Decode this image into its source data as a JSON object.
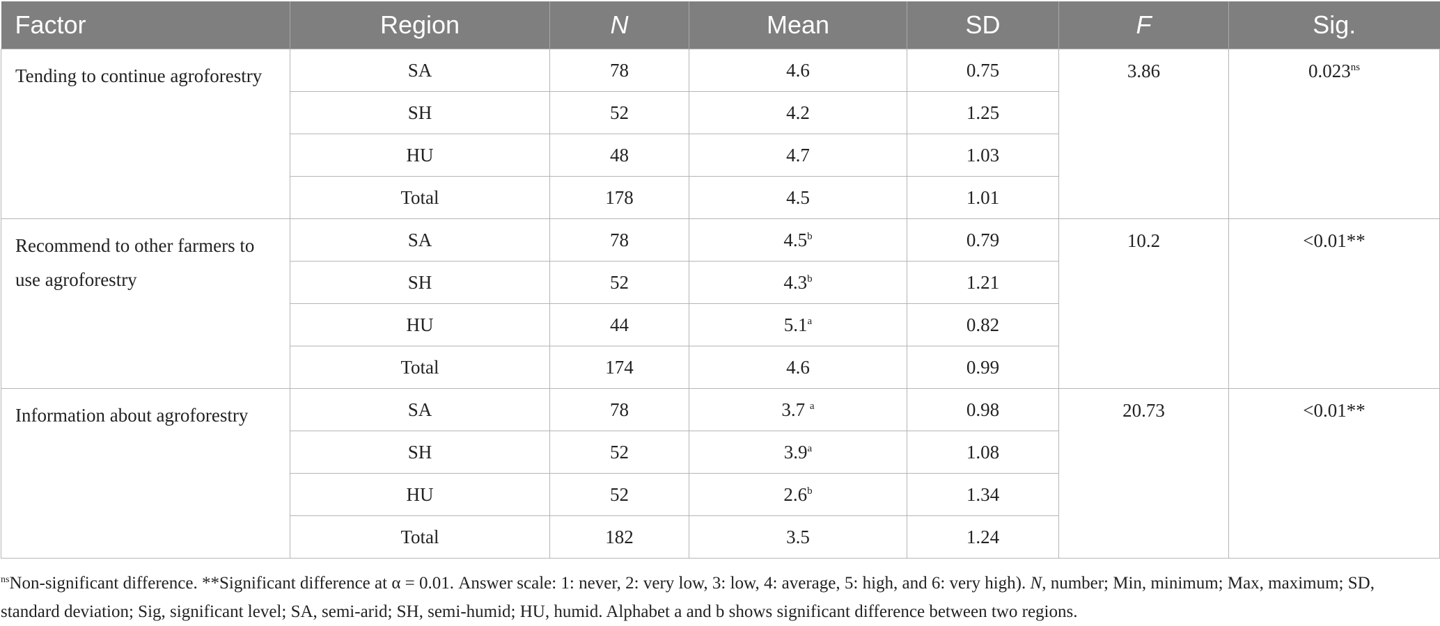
{
  "table": {
    "headers": [
      {
        "label": "Factor",
        "italic": false
      },
      {
        "label": "Region",
        "italic": false
      },
      {
        "label": "N",
        "italic": true
      },
      {
        "label": "Mean",
        "italic": false
      },
      {
        "label": "SD",
        "italic": false
      },
      {
        "label": "F",
        "italic": true
      },
      {
        "label": "Sig.",
        "italic": false
      }
    ],
    "groups": [
      {
        "factor": "Tending to continue agroforestry",
        "f": "3.86",
        "sig": "0.023",
        "sig_sup": "ns",
        "rows": [
          {
            "region": "SA",
            "n": "78",
            "mean": "4.6",
            "mean_sup": "",
            "sd": "0.75"
          },
          {
            "region": "SH",
            "n": "52",
            "mean": "4.2",
            "mean_sup": "",
            "sd": "1.25"
          },
          {
            "region": "HU",
            "n": "48",
            "mean": "4.7",
            "mean_sup": "",
            "sd": "1.03"
          },
          {
            "region": "Total",
            "n": "178",
            "mean": "4.5",
            "mean_sup": "",
            "sd": "1.01"
          }
        ]
      },
      {
        "factor": "Recommend to other farmers to use agroforestry",
        "f": "10.2",
        "sig": "<0.01**",
        "sig_sup": "",
        "rows": [
          {
            "region": "SA",
            "n": "78",
            "mean": "4.5",
            "mean_sup": "b",
            "sd": "0.79"
          },
          {
            "region": "SH",
            "n": "52",
            "mean": "4.3",
            "mean_sup": "b",
            "sd": "1.21"
          },
          {
            "region": "HU",
            "n": "44",
            "mean": "5.1",
            "mean_sup": "a",
            "sd": "0.82"
          },
          {
            "region": "Total",
            "n": "174",
            "mean": "4.6",
            "mean_sup": "",
            "sd": "0.99"
          }
        ]
      },
      {
        "factor": "Information about agroforestry",
        "f": "20.73",
        "sig": "<0.01**",
        "sig_sup": "",
        "rows": [
          {
            "region": "SA",
            "n": "78",
            "mean": "3.7 ",
            "mean_sup": "a",
            "sd": "0.98"
          },
          {
            "region": "SH",
            "n": "52",
            "mean": "3.9",
            "mean_sup": "a",
            "sd": "1.08"
          },
          {
            "region": "HU",
            "n": "52",
            "mean": "2.6",
            "mean_sup": "b",
            "sd": "1.34"
          },
          {
            "region": "Total",
            "n": "182",
            "mean": "3.5",
            "mean_sup": "",
            "sd": "1.24"
          }
        ]
      }
    ]
  },
  "footnote": {
    "ns_sup": "ns",
    "part1": "Non-significant difference. **Significant difference at α = 0.01. Answer scale: 1: never, 2: very low, 3: low, 4: average, 5: high, and 6: very high). ",
    "n_abbr": "N",
    "part2": ", number; Min, minimum; Max, maximum; SD, standard deviation; Sig, significant level; SA, semi-arid; SH, semi-humid; HU, humid. Alphabet a and b shows significant difference between two regions."
  }
}
